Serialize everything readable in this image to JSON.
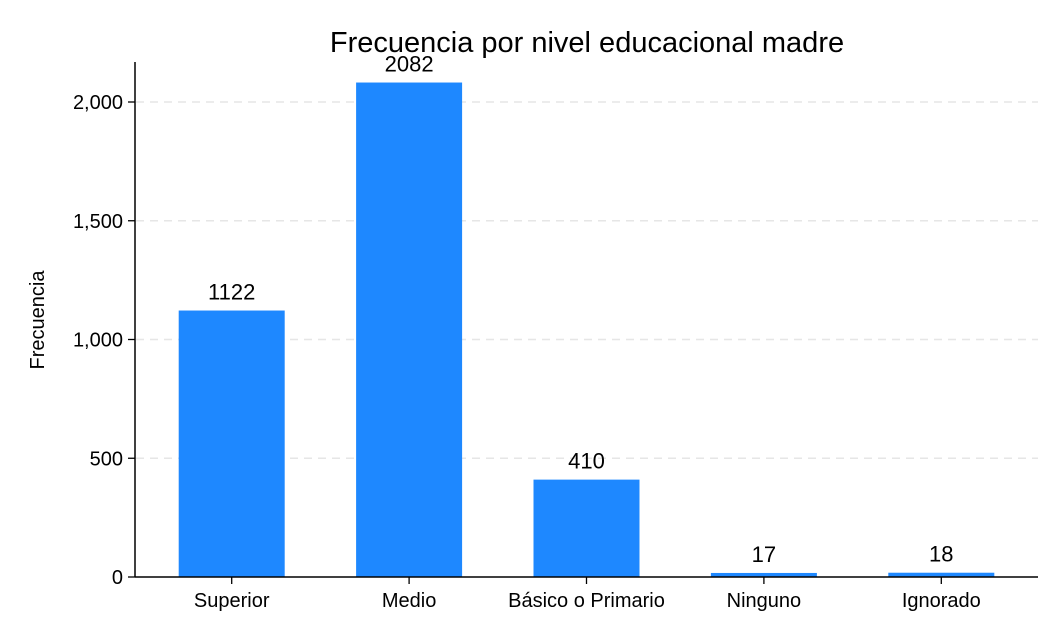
{
  "chart_data": {
    "type": "bar",
    "title": "Frecuencia por nivel educacional madre",
    "xlabel": "",
    "ylabel": "Frecuencia",
    "categories": [
      "Superior",
      "Medio",
      "Básico o Primario",
      "Ninguno",
      "Ignorado"
    ],
    "values": [
      1122,
      2082,
      410,
      17,
      18
    ],
    "data_labels": [
      "1122",
      "2082",
      "410",
      "17",
      "18"
    ],
    "ylim": [
      0,
      2200
    ],
    "yticks": [
      0,
      500,
      1000,
      1500,
      2000
    ],
    "ytick_labels": [
      "0",
      "500",
      "1,000",
      "1,500",
      "2,000"
    ],
    "grid": true,
    "grid_style": "dashed",
    "legend": "none",
    "bar_color": "#1e88ff",
    "grid_color": "#e6e6e6",
    "axis_color": "#000000"
  }
}
